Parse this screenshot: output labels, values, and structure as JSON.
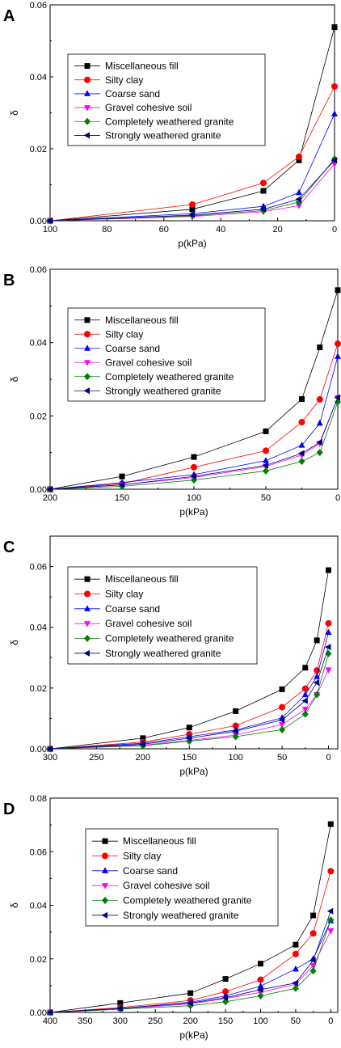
{
  "series_styles": [
    {
      "color": "#000000",
      "marker": "square"
    },
    {
      "color": "#ff0000",
      "marker": "circle"
    },
    {
      "color": "#0000ff",
      "marker": "triangle-up"
    },
    {
      "color": "#ff00ff",
      "marker": "triangle-down"
    },
    {
      "color": "#008000",
      "marker": "diamond"
    },
    {
      "color": "#000080",
      "marker": "triangle-left"
    }
  ],
  "chart_data": [
    {
      "type": "line",
      "panel_label": "A",
      "xlabel": "p(kPa)",
      "ylabel": "δ",
      "xlim": [
        100,
        0
      ],
      "ylim": [
        0,
        0.06
      ],
      "x_reversed": true,
      "xticks": [
        100,
        80,
        60,
        40,
        20,
        0
      ],
      "yticks": [
        0.0,
        0.02,
        0.04,
        0.06
      ],
      "ytick_labels": [
        "0.00",
        "0.02",
        "0.04",
        "0.06"
      ],
      "legend_position": "upper-left",
      "x": [
        100,
        50,
        25,
        12.5,
        0
      ],
      "series": [
        {
          "name": "Miscellaneous fill",
          "values": [
            0,
            0.0032,
            0.0083,
            0.0168,
            0.0538
          ]
        },
        {
          "name": "Silty clay",
          "values": [
            0,
            0.0045,
            0.0105,
            0.0178,
            0.0373
          ]
        },
        {
          "name": "Coarse sand",
          "values": [
            0,
            0.002,
            0.004,
            0.0078,
            0.0297
          ]
        },
        {
          "name": "Gravel cohesive soil",
          "values": [
            0,
            0.0012,
            0.0025,
            0.0042,
            0.0158
          ]
        },
        {
          "name": "Completely weathered granite",
          "values": [
            0,
            0.0014,
            0.0028,
            0.0052,
            0.0172
          ]
        },
        {
          "name": "Strongly weathered granite",
          "values": [
            0,
            0.0016,
            0.0032,
            0.006,
            0.0168
          ]
        }
      ]
    },
    {
      "type": "line",
      "panel_label": "B",
      "xlabel": "p(kPa)",
      "ylabel": "δ",
      "xlim": [
        200,
        0
      ],
      "ylim": [
        0,
        0.06
      ],
      "x_reversed": true,
      "xticks": [
        200,
        150,
        100,
        50,
        0
      ],
      "yticks": [
        0.0,
        0.02,
        0.04,
        0.06
      ],
      "ytick_labels": [
        "0.00",
        "0.02",
        "0.04",
        "0.06"
      ],
      "legend_position": "upper-left",
      "x": [
        200,
        150,
        100,
        50,
        25,
        12.5,
        0
      ],
      "series": [
        {
          "name": "Miscellaneous fill",
          "values": [
            0,
            0.0035,
            0.0088,
            0.0158,
            0.0246,
            0.0387,
            0.0543
          ]
        },
        {
          "name": "Silty clay",
          "values": [
            0,
            0.0015,
            0.006,
            0.0105,
            0.0183,
            0.0245,
            0.0397
          ]
        },
        {
          "name": "Coarse sand",
          "values": [
            0,
            0.0018,
            0.004,
            0.0078,
            0.012,
            0.018,
            0.0362
          ]
        },
        {
          "name": "Gravel cohesive soil",
          "values": [
            0,
            0.0012,
            0.0032,
            0.0062,
            0.0093,
            0.0125,
            0.025
          ]
        },
        {
          "name": "Completely weathered granite",
          "values": [
            0,
            0.0008,
            0.0025,
            0.005,
            0.0076,
            0.01,
            0.0238
          ]
        },
        {
          "name": "Strongly weathered granite",
          "values": [
            0,
            0.0012,
            0.0035,
            0.0065,
            0.0098,
            0.0128,
            0.025
          ]
        }
      ]
    },
    {
      "type": "line",
      "panel_label": "C",
      "xlabel": "p(kPa)",
      "ylabel": "δ",
      "xlim": [
        300,
        -10
      ],
      "ylim": [
        0,
        0.07
      ],
      "x_reversed": true,
      "xticks": [
        300,
        250,
        200,
        150,
        100,
        50,
        0
      ],
      "yticks": [
        0.0,
        0.02,
        0.04,
        0.06
      ],
      "ytick_labels": [
        "0.00",
        "0.02",
        "0.04",
        "0.06"
      ],
      "legend_position": "upper-left",
      "x": [
        300,
        200,
        150,
        100,
        50,
        25,
        12.5,
        0
      ],
      "series": [
        {
          "name": "Miscellaneous fill",
          "values": [
            0,
            0.0035,
            0.007,
            0.0124,
            0.0196,
            0.0267,
            0.0357,
            0.0588
          ]
        },
        {
          "name": "Silty clay",
          "values": [
            0,
            0.0022,
            0.0048,
            0.0076,
            0.0137,
            0.0198,
            0.0258,
            0.0413
          ]
        },
        {
          "name": "Coarse sand",
          "values": [
            0,
            0.0018,
            0.004,
            0.0062,
            0.0102,
            0.0178,
            0.0238,
            0.0383
          ]
        },
        {
          "name": "Gravel cohesive soil",
          "values": [
            0,
            0.0012,
            0.0028,
            0.0045,
            0.008,
            0.013,
            0.0178,
            0.026
          ]
        },
        {
          "name": "Completely weathered granite",
          "values": [
            0,
            0.001,
            0.0025,
            0.004,
            0.0063,
            0.0114,
            0.0178,
            0.0313
          ]
        },
        {
          "name": "Strongly weathered granite",
          "values": [
            0,
            0.0015,
            0.0035,
            0.0058,
            0.0095,
            0.0158,
            0.0218,
            0.0335
          ]
        }
      ]
    },
    {
      "type": "line",
      "panel_label": "D",
      "xlabel": "p(kPa)",
      "ylabel": "δ",
      "xlim": [
        400,
        -10
      ],
      "ylim": [
        0,
        0.08
      ],
      "x_reversed": true,
      "xticks": [
        400,
        350,
        300,
        250,
        200,
        150,
        100,
        50,
        0
      ],
      "yticks": [
        0.0,
        0.02,
        0.04,
        0.06,
        0.08
      ],
      "ytick_labels": [
        "0.00",
        "0.02",
        "0.04",
        "0.06",
        "0.08"
      ],
      "legend_position": "upper-left",
      "x": [
        400,
        300,
        200,
        150,
        100,
        50,
        25,
        0
      ],
      "series": [
        {
          "name": "Miscellaneous fill",
          "values": [
            0,
            0.0035,
            0.0072,
            0.0125,
            0.0182,
            0.0253,
            0.0362,
            0.0703
          ]
        },
        {
          "name": "Silty clay",
          "values": [
            0,
            0.0018,
            0.0045,
            0.0078,
            0.0122,
            0.0218,
            0.0295,
            0.0527
          ]
        },
        {
          "name": "Coarse sand",
          "values": [
            0,
            0.0015,
            0.0038,
            0.0062,
            0.0098,
            0.0162,
            0.02,
            0.0342
          ]
        },
        {
          "name": "Gravel cohesive soil",
          "values": [
            0,
            0.0012,
            0.0032,
            0.0052,
            0.0075,
            0.0105,
            0.0175,
            0.0305
          ]
        },
        {
          "name": "Completely weathered granite",
          "values": [
            0,
            0.0012,
            0.0025,
            0.004,
            0.0062,
            0.009,
            0.0155,
            0.0345
          ]
        },
        {
          "name": "Strongly weathered granite",
          "values": [
            0,
            0.0015,
            0.0035,
            0.0055,
            0.0085,
            0.011,
            0.0195,
            0.0378
          ]
        }
      ]
    }
  ]
}
